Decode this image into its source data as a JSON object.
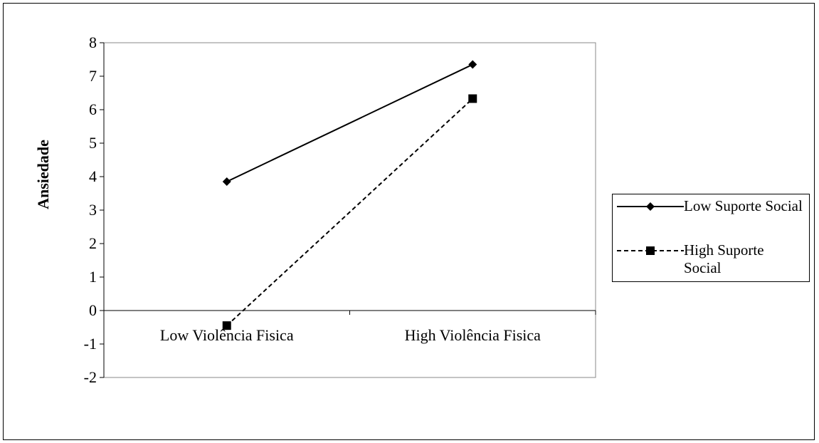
{
  "chart_data": {
    "type": "line",
    "categories": [
      "Low Violência Fisica",
      "High Violência Fisica"
    ],
    "series": [
      {
        "name": "Low Suporte Social",
        "values": [
          3.85,
          7.35
        ],
        "marker": "diamond",
        "dash": "solid",
        "color": "#000000"
      },
      {
        "name": "High Suporte Social",
        "values": [
          -0.45,
          6.33
        ],
        "marker": "square",
        "dash": "dashed",
        "color": "#000000"
      }
    ],
    "title": "",
    "xlabel": "",
    "ylabel": "Ansiedade",
    "ylim": [
      -2,
      8
    ],
    "yticks": [
      8,
      7,
      6,
      5,
      4,
      3,
      2,
      1,
      0,
      -1,
      -2
    ],
    "grid": false,
    "legend": "right"
  }
}
